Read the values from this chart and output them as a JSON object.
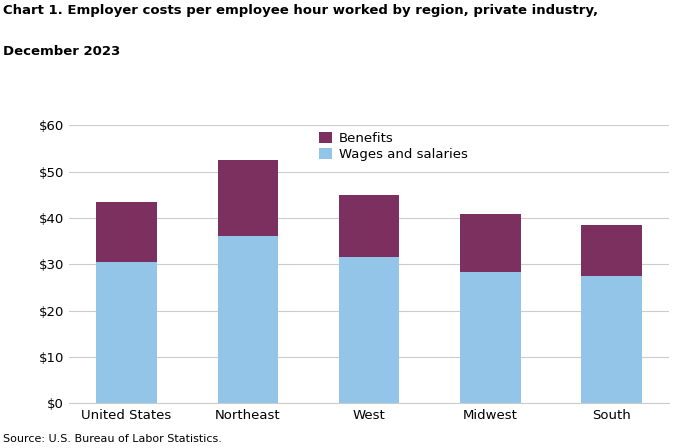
{
  "title_line1": "Chart 1. Employer costs per employee hour worked by region, private industry,",
  "title_line2": "December 2023",
  "categories": [
    "United States",
    "Northeast",
    "West",
    "Midwest",
    "South"
  ],
  "wages": [
    30.52,
    36.16,
    31.61,
    28.44,
    27.58
  ],
  "benefits": [
    12.93,
    16.35,
    13.45,
    12.43,
    11.02
  ],
  "wages_color": "#92C5E8",
  "benefits_color": "#7B3060",
  "wages_label": "Wages and salaries",
  "benefits_label": "Benefits",
  "ylim": [
    0,
    60
  ],
  "yticks": [
    0,
    10,
    20,
    30,
    40,
    50,
    60
  ],
  "source": "Source: U.S. Bureau of Labor Statistics.",
  "background_color": "#ffffff",
  "plot_background_color": "#ffffff",
  "grid_color": "#cccccc",
  "bar_width": 0.5,
  "figsize": [
    6.9,
    4.48
  ],
  "dpi": 100
}
